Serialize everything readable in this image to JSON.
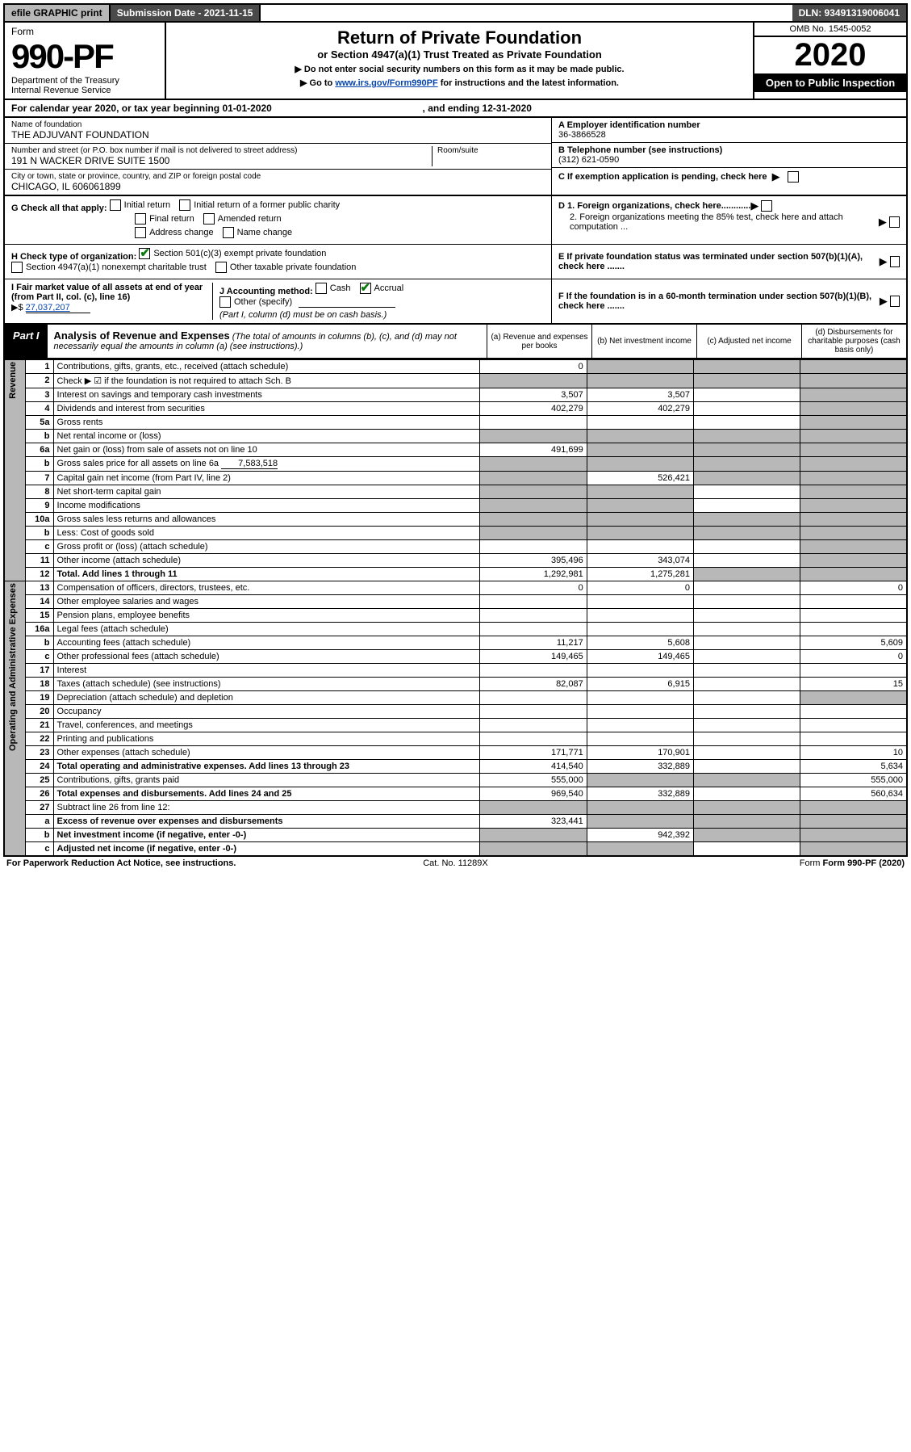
{
  "top": {
    "efile": "efile GRAPHIC print",
    "submission": "Submission Date - 2021-11-15",
    "dln": "DLN: 93491319006041"
  },
  "header": {
    "form_word": "Form",
    "form_num": "990-PF",
    "dept": "Department of the Treasury",
    "irs": "Internal Revenue Service",
    "title": "Return of Private Foundation",
    "subtitle": "or Section 4947(a)(1) Trust Treated as Private Foundation",
    "warn": "▶ Do not enter social security numbers on this form as it may be made public.",
    "goto_pre": "▶ Go to ",
    "goto_link": "www.irs.gov/Form990PF",
    "goto_post": " for instructions and the latest information.",
    "omb": "OMB No. 1545-0052",
    "year": "2020",
    "open": "Open to Public Inspection"
  },
  "cal": {
    "pre": "For calendar year 2020, or tax year beginning ",
    "begin": "01-01-2020",
    "mid": ", and ending ",
    "end": "12-31-2020"
  },
  "foundation": {
    "name_lbl": "Name of foundation",
    "name": "THE ADJUVANT FOUNDATION",
    "addr_lbl": "Number and street (or P.O. box number if mail is not delivered to street address)",
    "addr": "191 N WACKER DRIVE SUITE 1500",
    "room_lbl": "Room/suite",
    "city_lbl": "City or town, state or province, country, and ZIP or foreign postal code",
    "city": "CHICAGO, IL  606061899",
    "ein_lbl": "A Employer identification number",
    "ein": "36-3866528",
    "tel_lbl": "B Telephone number (see instructions)",
    "tel": "(312) 621-0590",
    "c": "C If exemption application is pending, check here",
    "d1": "D 1. Foreign organizations, check here............",
    "d2": "2. Foreign organizations meeting the 85% test, check here and attach computation ...",
    "e": "E  If private foundation status was terminated under section 507(b)(1)(A), check here .......",
    "f": "F  If the foundation is in a 60-month termination under section 507(b)(1)(B), check here .......",
    "g_lbl": "G Check all that apply:",
    "g_initial": "Initial return",
    "g_initial_former": "Initial return of a former public charity",
    "g_final": "Final return",
    "g_amended": "Amended return",
    "g_addr": "Address change",
    "g_name": "Name change",
    "h_lbl": "H Check type of organization:",
    "h_501c3": "Section 501(c)(3) exempt private foundation",
    "h_4947": "Section 4947(a)(1) nonexempt charitable trust",
    "h_other": "Other taxable private foundation",
    "i_lbl": "I Fair market value of all assets at end of year (from Part II, col. (c), line 16)",
    "i_prefix": "▶$ ",
    "i_val": "27,037,207",
    "j_lbl": "J Accounting method:",
    "j_cash": "Cash",
    "j_accrual": "Accrual",
    "j_other": "Other (specify)",
    "j_note": "(Part I, column (d) must be on cash basis.)"
  },
  "part1": {
    "tag": "Part I",
    "title": "Analysis of Revenue and Expenses",
    "note": "(The total of amounts in columns (b), (c), and (d) may not necessarily equal the amounts in column (a) (see instructions).)",
    "col_a": "(a) Revenue and expenses per books",
    "col_b": "(b) Net investment income",
    "col_c": "(c) Adjusted net income",
    "col_d": "(d) Disbursements for charitable purposes (cash basis only)"
  },
  "sides": {
    "revenue": "Revenue",
    "expenses": "Operating and Administrative Expenses"
  },
  "rows": {
    "r1": {
      "ln": "1",
      "d": "Contributions, gifts, grants, etc., received (attach schedule)",
      "a": "0"
    },
    "r2": {
      "ln": "2",
      "d": "Check ▶ ☑ if the foundation is not required to attach Sch. B"
    },
    "r3": {
      "ln": "3",
      "d": "Interest on savings and temporary cash investments",
      "a": "3,507",
      "b": "3,507"
    },
    "r4": {
      "ln": "4",
      "d": "Dividends and interest from securities",
      "a": "402,279",
      "b": "402,279"
    },
    "r5a": {
      "ln": "5a",
      "d": "Gross rents"
    },
    "r5b": {
      "ln": "b",
      "d": "Net rental income or (loss)"
    },
    "r6a": {
      "ln": "6a",
      "d": "Net gain or (loss) from sale of assets not on line 10",
      "a": "491,699"
    },
    "r6b": {
      "ln": "b",
      "d": "Gross sales price for all assets on line 6a",
      "inline": "7,583,518"
    },
    "r7": {
      "ln": "7",
      "d": "Capital gain net income (from Part IV, line 2)",
      "b": "526,421"
    },
    "r8": {
      "ln": "8",
      "d": "Net short-term capital gain"
    },
    "r9": {
      "ln": "9",
      "d": "Income modifications"
    },
    "r10a": {
      "ln": "10a",
      "d": "Gross sales less returns and allowances"
    },
    "r10b": {
      "ln": "b",
      "d": "Less: Cost of goods sold"
    },
    "r10c": {
      "ln": "c",
      "d": "Gross profit or (loss) (attach schedule)"
    },
    "r11": {
      "ln": "11",
      "d": "Other income (attach schedule)",
      "a": "395,496",
      "b": "343,074"
    },
    "r12": {
      "ln": "12",
      "d": "Total. Add lines 1 through 11",
      "a": "1,292,981",
      "b": "1,275,281"
    },
    "r13": {
      "ln": "13",
      "d": "Compensation of officers, directors, trustees, etc.",
      "a": "0",
      "b": "0",
      "dd": "0"
    },
    "r14": {
      "ln": "14",
      "d": "Other employee salaries and wages"
    },
    "r15": {
      "ln": "15",
      "d": "Pension plans, employee benefits"
    },
    "r16a": {
      "ln": "16a",
      "d": "Legal fees (attach schedule)"
    },
    "r16b": {
      "ln": "b",
      "d": "Accounting fees (attach schedule)",
      "a": "11,217",
      "b": "5,608",
      "dd": "5,609"
    },
    "r16c": {
      "ln": "c",
      "d": "Other professional fees (attach schedule)",
      "a": "149,465",
      "b": "149,465",
      "dd": "0"
    },
    "r17": {
      "ln": "17",
      "d": "Interest"
    },
    "r18": {
      "ln": "18",
      "d": "Taxes (attach schedule) (see instructions)",
      "a": "82,087",
      "b": "6,915",
      "dd": "15"
    },
    "r19": {
      "ln": "19",
      "d": "Depreciation (attach schedule) and depletion"
    },
    "r20": {
      "ln": "20",
      "d": "Occupancy"
    },
    "r21": {
      "ln": "21",
      "d": "Travel, conferences, and meetings"
    },
    "r22": {
      "ln": "22",
      "d": "Printing and publications"
    },
    "r23": {
      "ln": "23",
      "d": "Other expenses (attach schedule)",
      "a": "171,771",
      "b": "170,901",
      "dd": "10"
    },
    "r24": {
      "ln": "24",
      "d": "Total operating and administrative expenses. Add lines 13 through 23",
      "a": "414,540",
      "b": "332,889",
      "dd": "5,634"
    },
    "r25": {
      "ln": "25",
      "d": "Contributions, gifts, grants paid",
      "a": "555,000",
      "dd": "555,000"
    },
    "r26": {
      "ln": "26",
      "d": "Total expenses and disbursements. Add lines 24 and 25",
      "a": "969,540",
      "b": "332,889",
      "dd": "560,634"
    },
    "r27": {
      "ln": "27",
      "d": "Subtract line 26 from line 12:"
    },
    "r27a": {
      "ln": "a",
      "d": "Excess of revenue over expenses and disbursements",
      "a": "323,441"
    },
    "r27b": {
      "ln": "b",
      "d": "Net investment income (if negative, enter -0-)",
      "b": "942,392"
    },
    "r27c": {
      "ln": "c",
      "d": "Adjusted net income (if negative, enter -0-)"
    }
  },
  "footer": {
    "left": "For Paperwork Reduction Act Notice, see instructions.",
    "mid": "Cat. No. 11289X",
    "right": "Form 990-PF (2020)"
  },
  "colors": {
    "shade": "#b8b8b8",
    "link": "#0645ad",
    "check": "#0a7a0a"
  }
}
